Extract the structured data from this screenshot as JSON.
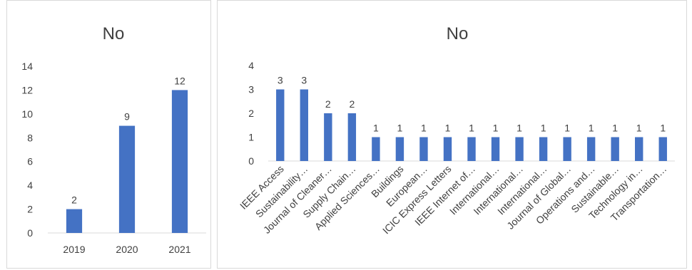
{
  "chart_data": [
    {
      "type": "bar",
      "title": "No",
      "categories": [
        "2019",
        "2020",
        "2021"
      ],
      "values": [
        2,
        9,
        12
      ],
      "ylim": [
        0,
        14
      ],
      "yticks": [
        0,
        2,
        4,
        6,
        8,
        10,
        12,
        14
      ],
      "data_labels": true,
      "grid": false,
      "color": "#4472C4"
    },
    {
      "type": "bar",
      "title": "No",
      "categories": [
        "IEEE Access",
        "Sustainability…",
        "Journal of Cleaner…",
        "Supply Chain…",
        "Applied Sciences…",
        "Buildings",
        "European…",
        "ICIC Express Letters",
        "IEEE Internet of…",
        "International…",
        "International…",
        "International…",
        "Journal of Global…",
        "Operations and…",
        "Sustainable…",
        "Technology in…",
        "Transportation…"
      ],
      "values": [
        3,
        3,
        2,
        2,
        1,
        1,
        1,
        1,
        1,
        1,
        1,
        1,
        1,
        1,
        1,
        1,
        1
      ],
      "ylim": [
        0,
        4
      ],
      "yticks": [
        0,
        1,
        2,
        3,
        4
      ],
      "data_labels": true,
      "grid": false,
      "color": "#4472C4"
    }
  ]
}
